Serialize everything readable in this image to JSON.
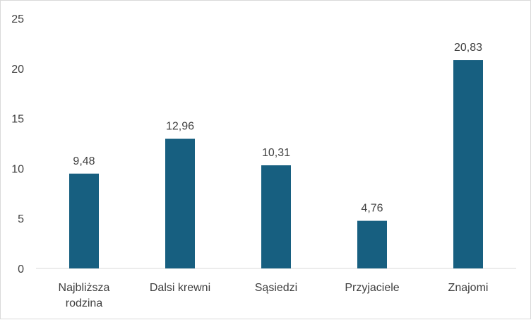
{
  "chart_data": {
    "type": "bar",
    "categories": [
      "Najbliższa rodzina",
      "Dalsi krewni",
      "Sąsiedzi",
      "Przyjaciele",
      "Znajomi"
    ],
    "category_lines": [
      [
        "Najbliższa",
        "rodzina"
      ],
      [
        "Dalsi krewni"
      ],
      [
        "Sąsiedzi"
      ],
      [
        "Przyjaciele"
      ],
      [
        "Znajomi"
      ]
    ],
    "values": [
      9.48,
      12.96,
      10.31,
      4.76,
      20.83
    ],
    "value_labels": [
      "9,48",
      "12,96",
      "10,31",
      "4,76",
      "20,83"
    ],
    "yticks": [
      0,
      5,
      10,
      15,
      20,
      25
    ],
    "ytick_labels": [
      "0",
      "5",
      "10",
      "15",
      "20",
      "25"
    ],
    "ylim": [
      0,
      25
    ],
    "title": "",
    "xlabel": "",
    "ylabel": "",
    "grid": false,
    "legend": "none",
    "bar_color": "#175f80",
    "axis_color": "#d9d9d9",
    "text_color": "#404040"
  }
}
